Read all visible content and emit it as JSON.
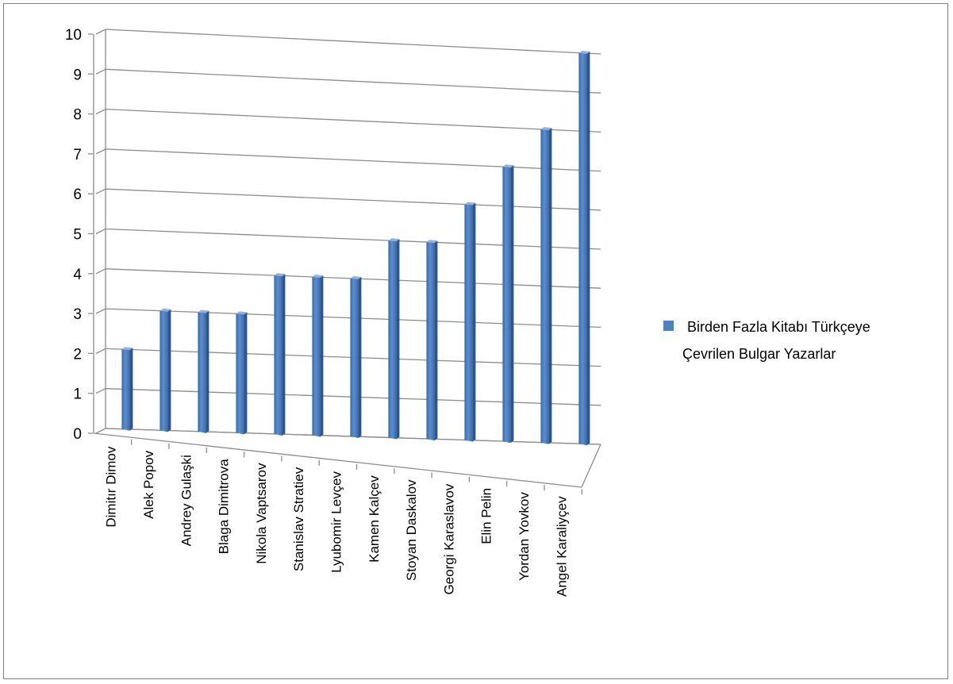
{
  "chart_data": {
    "type": "bar",
    "title": "",
    "xlabel": "",
    "ylabel": "",
    "ylim": [
      0,
      10
    ],
    "yticks": [
      "0",
      "1",
      "2",
      "3",
      "4",
      "5",
      "6",
      "7",
      "8",
      "9",
      "10"
    ],
    "grid": true,
    "legend_position": "right",
    "categories": [
      "Dimitır Dimov",
      "Alek Popov",
      "Andrey Gulaşki",
      "Blaga Dimitrova",
      "Nikola Vaptsarov",
      "Stanislav Stratiev",
      "Lyubomir Levçev",
      "Kamen Kalçev",
      "Stoyan Daskalov",
      "Georgi Karaslavov",
      "Elin Pelin",
      "Yordan Yovkov",
      "Angel Karaliyçev"
    ],
    "series": [
      {
        "name_lines": [
          "Birden Fazla Kitabı Türkçeye",
          "Çevrilen  Bulgar Yazarlar"
        ],
        "values": [
          2,
          3,
          3,
          3,
          4,
          4,
          4,
          5,
          5,
          6,
          7,
          8,
          10
        ],
        "color": "#4f81bd"
      }
    ]
  }
}
